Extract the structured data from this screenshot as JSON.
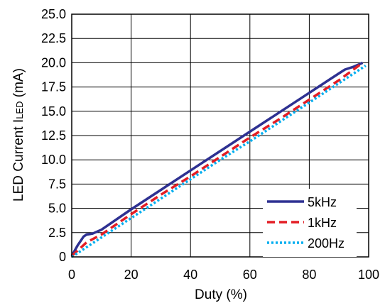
{
  "chart_data": {
    "type": "line",
    "xlabel": "Duty (%)",
    "ylabel_main": "LED Current I",
    "ylabel_sub": "LED",
    "ylabel_unit": " (mA)",
    "xlim": [
      0,
      100
    ],
    "ylim": [
      0,
      25
    ],
    "x_ticks": [
      "0",
      "20",
      "40",
      "60",
      "80",
      "100"
    ],
    "y_ticks": [
      "0",
      "2.5",
      "5.0",
      "7.5",
      "10.0",
      "12.5",
      "15.0",
      "17.5",
      "20.0",
      "22.5",
      "25.0"
    ],
    "grid": true,
    "legend_position": "bottom-right",
    "series": [
      {
        "name": "5kHz",
        "color": "#2e3192",
        "dash": "solid",
        "x": [
          0,
          2,
          4,
          5,
          7,
          10,
          20,
          30,
          40,
          50,
          60,
          70,
          80,
          90,
          92,
          95,
          98
        ],
        "y": [
          0.1,
          1.2,
          2.1,
          2.3,
          2.4,
          2.8,
          4.9,
          6.9,
          8.9,
          10.9,
          12.9,
          14.9,
          16.9,
          18.9,
          19.3,
          19.6,
          20.0
        ]
      },
      {
        "name": "1kHz",
        "color": "#e31e25",
        "dash": "dashed",
        "x": [
          0,
          5,
          10,
          20,
          30,
          40,
          50,
          60,
          70,
          80,
          90,
          98
        ],
        "y": [
          0.1,
          1.5,
          2.3,
          4.4,
          6.4,
          8.3,
          10.3,
          12.3,
          14.2,
          16.2,
          18.2,
          20.0
        ]
      },
      {
        "name": "200Hz",
        "color": "#00aeef",
        "dash": "dotted",
        "x": [
          0,
          10,
          20,
          30,
          40,
          50,
          60,
          70,
          80,
          90,
          99
        ],
        "y": [
          0,
          2.0,
          4.0,
          6.0,
          8.0,
          10.0,
          11.9,
          13.9,
          15.9,
          17.9,
          19.7
        ]
      }
    ]
  }
}
